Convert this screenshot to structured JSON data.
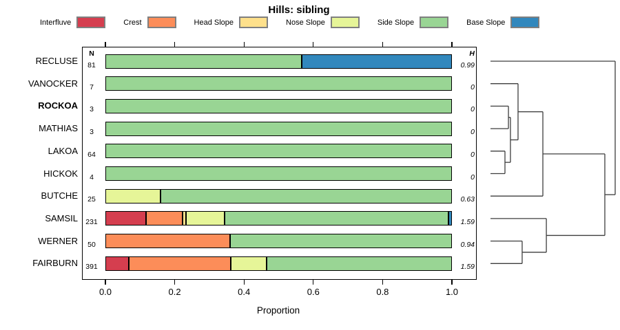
{
  "title": "Hills: sibling",
  "chart_data": {
    "type": "bar",
    "orientation": "horizontal",
    "stacked": true,
    "title": "Hills: sibling",
    "xlabel": "Proportion",
    "xlim": [
      0,
      1
    ],
    "x_ticks": [
      "0.0",
      "0.2",
      "0.4",
      "0.6",
      "0.8",
      "1.0"
    ],
    "grid": false,
    "legend_position": "top",
    "legend": [
      {
        "label": "Interfluve",
        "color": "#d53e4f"
      },
      {
        "label": "Crest",
        "color": "#fc8d59"
      },
      {
        "label": "Head Slope",
        "color": "#fee08b"
      },
      {
        "label": "Nose Slope",
        "color": "#e6f598"
      },
      {
        "label": "Side Slope",
        "color": "#99d594"
      },
      {
        "label": "Base Slope",
        "color": "#3288bd"
      }
    ],
    "columns": {
      "n_header": "N",
      "h_header": "H"
    },
    "rows": [
      {
        "label": "RECLUSE",
        "bold": false,
        "n": "81",
        "h": "0.99",
        "segments": [
          {
            "category": "Side Slope",
            "value": 0.567
          },
          {
            "category": "Base Slope",
            "value": 0.433
          }
        ]
      },
      {
        "label": "VANOCKER",
        "bold": false,
        "n": "7",
        "h": "0",
        "segments": [
          {
            "category": "Side Slope",
            "value": 1.0
          }
        ]
      },
      {
        "label": "ROCKOA",
        "bold": true,
        "n": "3",
        "h": "0",
        "segments": [
          {
            "category": "Side Slope",
            "value": 1.0
          }
        ]
      },
      {
        "label": "MATHIAS",
        "bold": false,
        "n": "3",
        "h": "0",
        "segments": [
          {
            "category": "Side Slope",
            "value": 1.0
          }
        ]
      },
      {
        "label": "LAKOA",
        "bold": false,
        "n": "64",
        "h": "0",
        "segments": [
          {
            "category": "Side Slope",
            "value": 1.0
          }
        ]
      },
      {
        "label": "HICKOK",
        "bold": false,
        "n": "4",
        "h": "0",
        "segments": [
          {
            "category": "Side Slope",
            "value": 1.0
          }
        ]
      },
      {
        "label": "BUTCHE",
        "bold": false,
        "n": "25",
        "h": "0.63",
        "segments": [
          {
            "category": "Nose Slope",
            "value": 0.16
          },
          {
            "category": "Side Slope",
            "value": 0.84
          }
        ]
      },
      {
        "label": "SAMSIL",
        "bold": false,
        "n": "231",
        "h": "1.59",
        "segments": [
          {
            "category": "Interfluve",
            "value": 0.117
          },
          {
            "category": "Crest",
            "value": 0.106
          },
          {
            "category": "Head Slope",
            "value": 0.009
          },
          {
            "category": "Nose Slope",
            "value": 0.112
          },
          {
            "category": "Side Slope",
            "value": 0.646
          },
          {
            "category": "Base Slope",
            "value": 0.01
          }
        ]
      },
      {
        "label": "WERNER",
        "bold": false,
        "n": "50",
        "h": "0.94",
        "segments": [
          {
            "category": "Crest",
            "value": 0.36
          },
          {
            "category": "Side Slope",
            "value": 0.64
          }
        ]
      },
      {
        "label": "FAIRBURN",
        "bold": false,
        "n": "391",
        "h": "1.59",
        "segments": [
          {
            "category": "Interfluve",
            "value": 0.067
          },
          {
            "category": "Crest",
            "value": 0.295
          },
          {
            "category": "Nose Slope",
            "value": 0.103
          },
          {
            "category": "Side Slope",
            "value": 0.535
          }
        ]
      }
    ],
    "dendrogram": {
      "leaves": [
        "RECLUSE",
        "VANOCKER",
        "ROCKOA",
        "MATHIAS",
        "LAKOA",
        "HICKOK",
        "BUTCHE",
        "SAMSIL",
        "WERNER",
        "FAIRBURN"
      ],
      "merges": [
        {
          "id": "m1",
          "a": "ROCKOA",
          "b": "MATHIAS",
          "h": 0.144
        },
        {
          "id": "m2",
          "a": "LAKOA",
          "b": "HICKOK",
          "h": 0.116
        },
        {
          "id": "m3",
          "a": "m1",
          "b": "m2",
          "h": 0.16
        },
        {
          "id": "m4",
          "a": "VANOCKER",
          "b": "m3",
          "h": 0.221
        },
        {
          "id": "m5",
          "a": "m4",
          "b": "BUTCHE",
          "h": 0.42
        },
        {
          "id": "m6",
          "a": "WERNER",
          "b": "FAIRBURN",
          "h": 0.254
        },
        {
          "id": "m7",
          "a": "SAMSIL",
          "b": "m6",
          "h": 0.448
        },
        {
          "id": "m8",
          "a": "m5",
          "b": "m7",
          "h": 0.917
        },
        {
          "id": "m9",
          "a": "RECLUSE",
          "b": "m8",
          "h": 1.0
        }
      ]
    }
  }
}
